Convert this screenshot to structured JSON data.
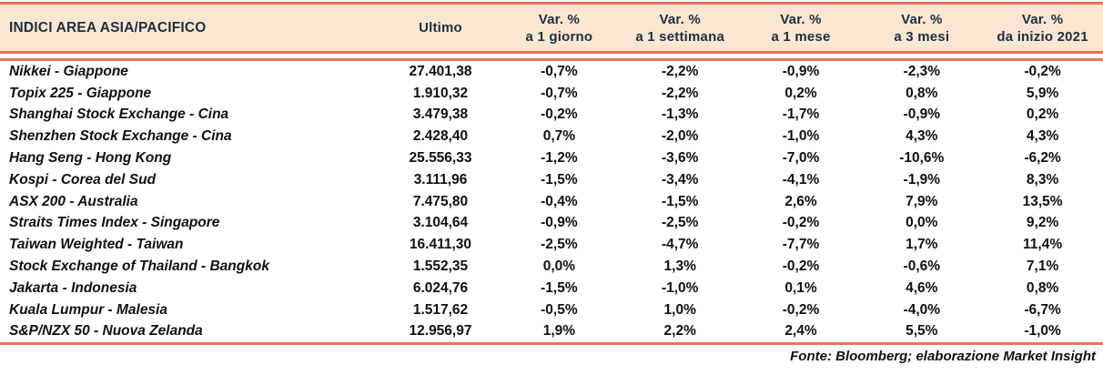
{
  "colors": {
    "line": "#F0715A",
    "header_bg": "#FBE6D2",
    "header_text": "#1D2F3F",
    "body_text": "#101010"
  },
  "table": {
    "columns": [
      {
        "label": "INDICI AREA ASIA/PACIFICO"
      },
      {
        "label": "Ultimo"
      },
      {
        "line1": "Var. %",
        "line2": "a 1 giorno"
      },
      {
        "line1": "Var. %",
        "line2": "a 1 settimana"
      },
      {
        "line1": "Var. %",
        "line2": "a 1 mese"
      },
      {
        "line1": "Var. %",
        "line2": "a 3 mesi"
      },
      {
        "line1": "Var. %",
        "line2": "da inizio 2021"
      }
    ],
    "rows": [
      {
        "name": "Nikkei - Giappone",
        "ultimo": "27.401,38",
        "var_1g": "-0,7%",
        "var_1s": "-2,2%",
        "var_1m": "-0,9%",
        "var_3m": "-2,3%",
        "var_ytd": "-0,2%"
      },
      {
        "name": "Topix 225 - Giappone",
        "ultimo": "1.910,32",
        "var_1g": "-0,7%",
        "var_1s": "-2,2%",
        "var_1m": "0,2%",
        "var_3m": "0,8%",
        "var_ytd": "5,9%"
      },
      {
        "name": "Shanghai Stock Exchange - Cina",
        "ultimo": "3.479,38",
        "var_1g": "-0,2%",
        "var_1s": "-1,3%",
        "var_1m": "-1,7%",
        "var_3m": "-0,9%",
        "var_ytd": "0,2%"
      },
      {
        "name": "Shenzhen Stock Exchange - Cina",
        "ultimo": "2.428,40",
        "var_1g": "0,7%",
        "var_1s": "-2,0%",
        "var_1m": "-1,0%",
        "var_3m": "4,3%",
        "var_ytd": "4,3%"
      },
      {
        "name": "Hang Seng - Hong Kong",
        "ultimo": "25.556,33",
        "var_1g": "-1,2%",
        "var_1s": "-3,6%",
        "var_1m": "-7,0%",
        "var_3m": "-10,6%",
        "var_ytd": "-6,2%"
      },
      {
        "name": "Kospi - Corea del Sud",
        "ultimo": "3.111,96",
        "var_1g": "-1,5%",
        "var_1s": "-3,4%",
        "var_1m": "-4,1%",
        "var_3m": "-1,9%",
        "var_ytd": "8,3%"
      },
      {
        "name": "ASX 200 - Australia",
        "ultimo": "7.475,80",
        "var_1g": "-0,4%",
        "var_1s": "-1,5%",
        "var_1m": "2,6%",
        "var_3m": "7,9%",
        "var_ytd": "13,5%"
      },
      {
        "name": "Straits Times Index - Singapore",
        "ultimo": "3.104,64",
        "var_1g": "-0,9%",
        "var_1s": "-2,5%",
        "var_1m": "-0,2%",
        "var_3m": "0,0%",
        "var_ytd": "9,2%"
      },
      {
        "name": "Taiwan Weighted - Taiwan",
        "ultimo": "16.411,30",
        "var_1g": "-2,5%",
        "var_1s": "-4,7%",
        "var_1m": "-7,7%",
        "var_3m": "1,7%",
        "var_ytd": "11,4%"
      },
      {
        "name": "Stock Exchange of Thailand - Bangkok",
        "ultimo": "1.552,35",
        "var_1g": "0,0%",
        "var_1s": "1,3%",
        "var_1m": "-0,2%",
        "var_3m": "-0,6%",
        "var_ytd": "7,1%"
      },
      {
        "name": "Jakarta - Indonesia",
        "ultimo": "6.024,76",
        "var_1g": "-1,5%",
        "var_1s": "-1,0%",
        "var_1m": "0,1%",
        "var_3m": "4,6%",
        "var_ytd": "0,8%"
      },
      {
        "name": "Kuala Lumpur - Malesia",
        "ultimo": "1.517,62",
        "var_1g": "-0,5%",
        "var_1s": "1,0%",
        "var_1m": "-0,2%",
        "var_3m": "-4,0%",
        "var_ytd": "-6,7%"
      },
      {
        "name": "S&P/NZX 50 - Nuova Zelanda",
        "ultimo": "12.956,97",
        "var_1g": "1,9%",
        "var_1s": "2,2%",
        "var_1m": "2,4%",
        "var_3m": "5,5%",
        "var_ytd": "-1,0%"
      }
    ]
  },
  "footer": "Fonte: Bloomberg; elaborazione Market Insight"
}
